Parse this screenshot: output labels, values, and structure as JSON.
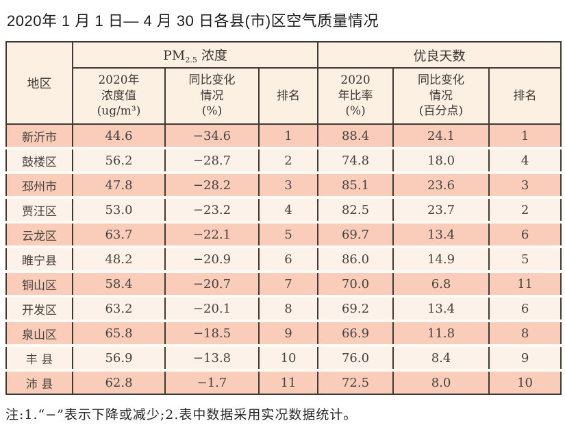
{
  "page": {
    "title": "2020年 1 月 1 日— 4 月 30 日各县(市)区空气质量情况",
    "note": "注:1.“−”表示下降或减少;2.表中数据采用实况数据统计。"
  },
  "colors": {
    "border": "#3d3935",
    "row_odd": "#f9cdba",
    "row_even": "#fcf2e9",
    "header_bg": "#fbf0e2",
    "title_color": "#1d1d1d"
  },
  "table": {
    "corner_header": "地区",
    "group_pm": {
      "prefix": "PM",
      "sub": "2.5",
      "suffix": " 浓度"
    },
    "group_days": "优良天数",
    "subheaders": {
      "pm_value": [
        "2020年",
        "浓度值",
        "(ug/m³)"
      ],
      "pm_change": [
        "同比变化",
        "情况",
        "(%)"
      ],
      "pm_rank": "排名",
      "days_ratio": [
        "2020",
        "年比率",
        "(%)"
      ],
      "days_change": [
        "同比变化",
        "情况",
        "(百分点)"
      ],
      "days_rank": "排名"
    },
    "rows": [
      {
        "region": "新沂市",
        "pm_value": "44.6",
        "pm_change": "−34.6",
        "pm_rank": "1",
        "days_ratio": "88.4",
        "days_change": "24.1",
        "days_rank": "1"
      },
      {
        "region": "鼓楼区",
        "pm_value": "56.2",
        "pm_change": "−28.7",
        "pm_rank": "2",
        "days_ratio": "74.8",
        "days_change": "18.0",
        "days_rank": "4"
      },
      {
        "region": "邳州市",
        "pm_value": "47.8",
        "pm_change": "−28.2",
        "pm_rank": "3",
        "days_ratio": "85.1",
        "days_change": "23.6",
        "days_rank": "3"
      },
      {
        "region": "贾汪区",
        "pm_value": "53.0",
        "pm_change": "−23.2",
        "pm_rank": "4",
        "days_ratio": "82.5",
        "days_change": "23.7",
        "days_rank": "2"
      },
      {
        "region": "云龙区",
        "pm_value": "63.7",
        "pm_change": "−22.1",
        "pm_rank": "5",
        "days_ratio": "69.7",
        "days_change": "13.4",
        "days_rank": "6"
      },
      {
        "region": "睢宁县",
        "pm_value": "48.2",
        "pm_change": "−20.9",
        "pm_rank": "6",
        "days_ratio": "86.0",
        "days_change": "14.9",
        "days_rank": "5"
      },
      {
        "region": "铜山区",
        "pm_value": "58.4",
        "pm_change": "−20.7",
        "pm_rank": "7",
        "days_ratio": "70.0",
        "days_change": "6.8",
        "days_rank": "11"
      },
      {
        "region": "开发区",
        "pm_value": "63.2",
        "pm_change": "−20.1",
        "pm_rank": "8",
        "days_ratio": "69.2",
        "days_change": "13.4",
        "days_rank": "6"
      },
      {
        "region": "泉山区",
        "pm_value": "65.8",
        "pm_change": "−18.5",
        "pm_rank": "9",
        "days_ratio": "66.9",
        "days_change": "11.8",
        "days_rank": "8"
      },
      {
        "region": "丰 县",
        "pm_value": "56.9",
        "pm_change": "−13.8",
        "pm_rank": "10",
        "days_ratio": "76.0",
        "days_change": "8.4",
        "days_rank": "9"
      },
      {
        "region": "沛 县",
        "pm_value": "62.8",
        "pm_change": "−1.7",
        "pm_rank": "11",
        "days_ratio": "72.5",
        "days_change": "8.0",
        "days_rank": "10"
      }
    ]
  }
}
